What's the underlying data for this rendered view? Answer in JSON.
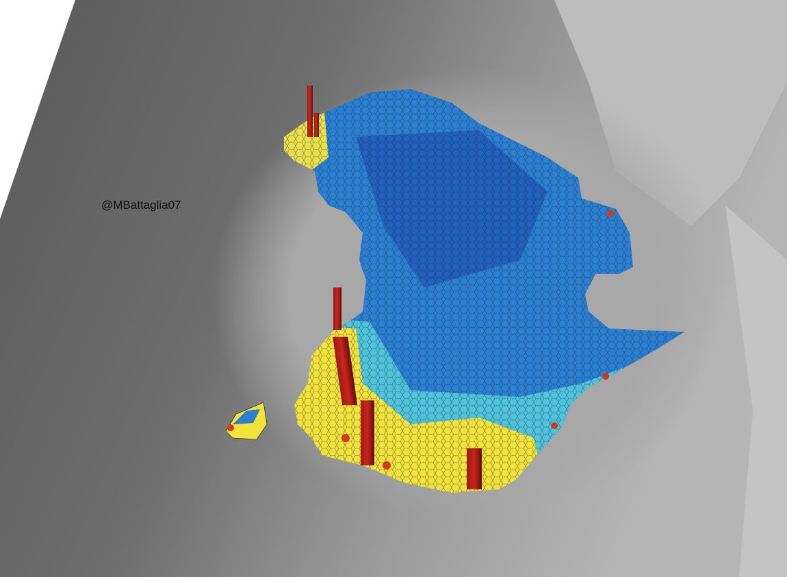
{
  "credit": "@MBattaglia07"
}
